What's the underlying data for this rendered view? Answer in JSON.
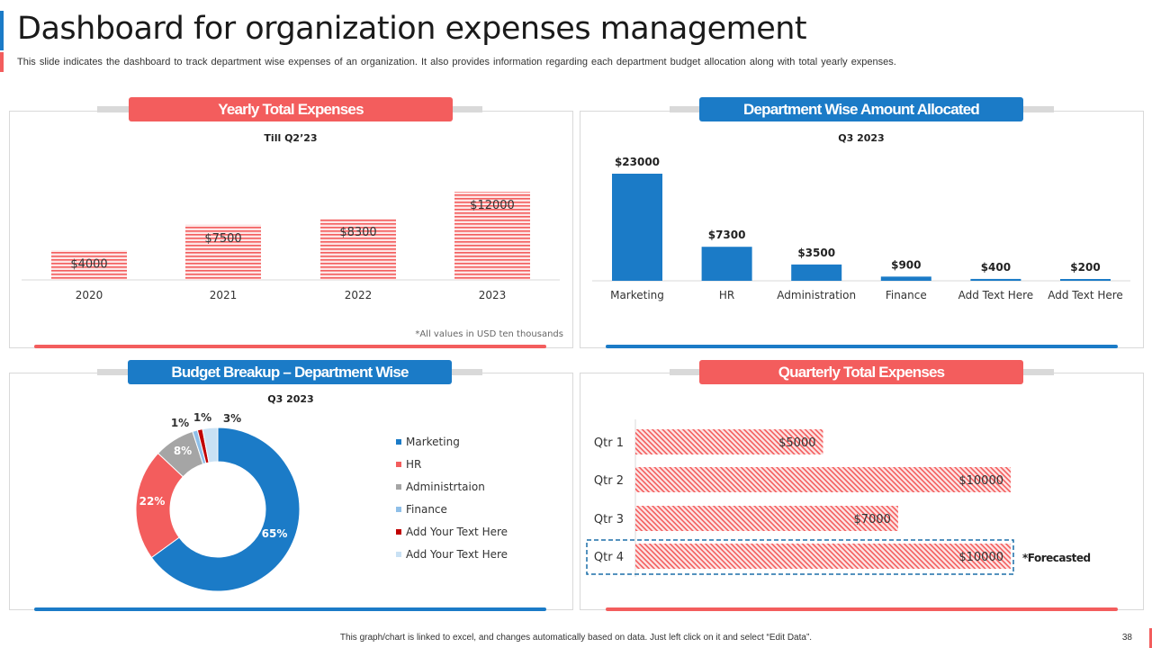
{
  "page": {
    "title": "Dashboard for organization expenses management",
    "subtitle": "This slide indicates the dashboard  to track department wise expenses of an organization.  It also provides  information  regarding  each department budget allocation along with total yearly expenses.",
    "footer": "This graph/chart is linked to excel, and changes automatically based on data. Just left click on it and select “Edit Data”.",
    "page_number": "38"
  },
  "colors": {
    "red": "#f35d5d",
    "blue": "#1b7bc7",
    "grey": "#a5a5a5",
    "light_blue": "#8fbfe8",
    "dark_red": "#c00000",
    "pale_blue": "#c9e1f4"
  },
  "panels": {
    "yearly": {
      "header": "Yearly Total Expenses",
      "footnote": "*All values in USD ten thousands"
    },
    "department": {
      "header": "Department Wise Amount Allocated"
    },
    "budget": {
      "header": "Budget Breakup – Department Wise"
    },
    "quarterly": {
      "header": "Quarterly Total Expenses",
      "forecast_note": "*Forecasted"
    }
  },
  "chart_data": [
    {
      "id": "yearly",
      "type": "bar",
      "title": "Till Q2’23",
      "categories": [
        "2020",
        "2021",
        "2022",
        "2023"
      ],
      "values": [
        4000,
        7500,
        8300,
        12000
      ],
      "labels": [
        "$4000",
        "$7500",
        "$8300",
        "$12000"
      ],
      "ylim": [
        0,
        14000
      ],
      "color": "#f35d5d"
    },
    {
      "id": "department",
      "type": "bar",
      "title": "Q3 2023",
      "categories": [
        "Marketing",
        "HR",
        "Administration",
        "Finance",
        "Add Text Here",
        "Add Text Here"
      ],
      "values": [
        23000,
        7300,
        3500,
        900,
        400,
        200
      ],
      "labels": [
        "$23000",
        "$7300",
        "$3500",
        "$900",
        "$400",
        "$200"
      ],
      "ylim": [
        0,
        23000
      ],
      "color": "#1b7bc7"
    },
    {
      "id": "budget",
      "type": "pie",
      "title": "Q3 2023",
      "categories": [
        "Marketing",
        "HR",
        "Administrtaion",
        "Finance",
        "Add Your Text Here",
        "Add Your Text Here"
      ],
      "values": [
        65,
        22,
        8,
        1,
        1,
        3
      ],
      "labels": [
        "65%",
        "22%",
        "8%",
        "1%",
        "1%",
        "3%"
      ],
      "colors": [
        "#1b7bc7",
        "#f35d5d",
        "#a5a5a5",
        "#8fbfe8",
        "#c00000",
        "#c9e1f4"
      ]
    },
    {
      "id": "quarterly",
      "type": "bar",
      "orientation": "horizontal",
      "categories": [
        "Qtr 1",
        "Qtr 2",
        "Qtr 3",
        "Qtr 4"
      ],
      "values": [
        5000,
        10000,
        7000,
        10000
      ],
      "labels": [
        "$5000",
        "$10000",
        "$7000",
        "$10000"
      ],
      "xlim": [
        0,
        10000
      ],
      "forecasted": [
        "Qtr 4"
      ],
      "color": "#f35d5d"
    }
  ]
}
